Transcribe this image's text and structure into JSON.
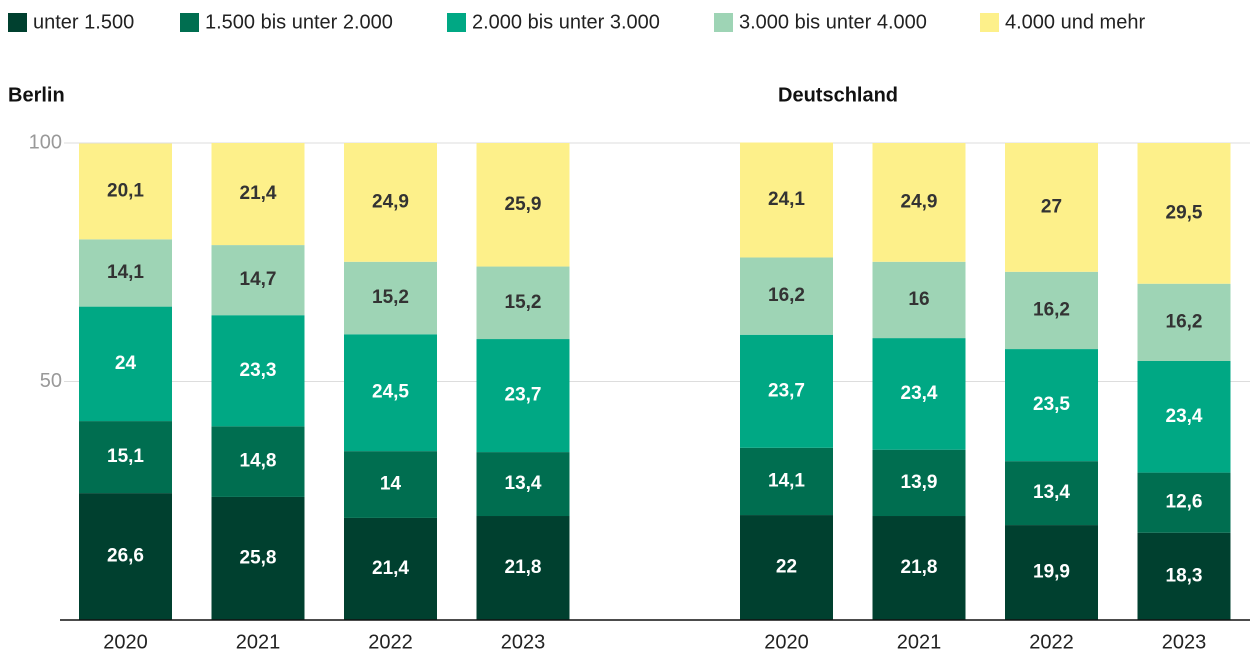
{
  "chart_data": {
    "type": "bar",
    "stacked": true,
    "ylim": [
      0,
      100
    ],
    "yticks": [
      50,
      100
    ],
    "grid": true,
    "series": [
      {
        "name": "unter 1.500",
        "color": "#00402f",
        "label_color": "#ffffff"
      },
      {
        "name": "1.500 bis unter 2.000",
        "color": "#006e50",
        "label_color": "#ffffff"
      },
      {
        "name": "2.000 bis unter 3.000",
        "color": "#00a884",
        "label_color": "#ffffff"
      },
      {
        "name": "3.000 bis unter 4.000",
        "color": "#9ed4b5",
        "label_color": "#333333"
      },
      {
        "name": "4.000 und mehr",
        "color": "#fdf08a",
        "label_color": "#333333"
      }
    ],
    "panels": [
      {
        "title": "Berlin",
        "categories": [
          "2020",
          "2021",
          "2022",
          "2023"
        ],
        "values": [
          [
            26.6,
            25.8,
            21.4,
            21.8
          ],
          [
            15.1,
            14.8,
            14,
            13.4
          ],
          [
            24,
            23.3,
            24.5,
            23.7
          ],
          [
            14.1,
            14.7,
            15.2,
            15.2
          ],
          [
            20.1,
            21.4,
            24.9,
            25.9
          ]
        ],
        "value_labels": [
          [
            "26,6",
            "25,8",
            "21,4",
            "21,8"
          ],
          [
            "15,1",
            "14,8",
            "14",
            "13,4"
          ],
          [
            "24",
            "23,3",
            "24,5",
            "23,7"
          ],
          [
            "14,1",
            "14,7",
            "15,2",
            "15,2"
          ],
          [
            "20,1",
            "21,4",
            "24,9",
            "25,9"
          ]
        ]
      },
      {
        "title": "Deutschland",
        "categories": [
          "2020",
          "2021",
          "2022",
          "2023"
        ],
        "values": [
          [
            22,
            21.8,
            19.9,
            18.3
          ],
          [
            14.1,
            13.9,
            13.4,
            12.6
          ],
          [
            23.7,
            23.4,
            23.5,
            23.4
          ],
          [
            16.2,
            16,
            16.2,
            16.2
          ],
          [
            24.1,
            24.9,
            27,
            29.5
          ]
        ],
        "value_labels": [
          [
            "22",
            "21,8",
            "19,9",
            "18,3"
          ],
          [
            "14,1",
            "13,9",
            "13,4",
            "12,6"
          ],
          [
            "23,7",
            "23,4",
            "23,5",
            "23,4"
          ],
          [
            "16,2",
            "16",
            "16,2",
            "16,2"
          ],
          [
            "24,1",
            "24,9",
            "27",
            "29,5"
          ]
        ]
      }
    ]
  }
}
